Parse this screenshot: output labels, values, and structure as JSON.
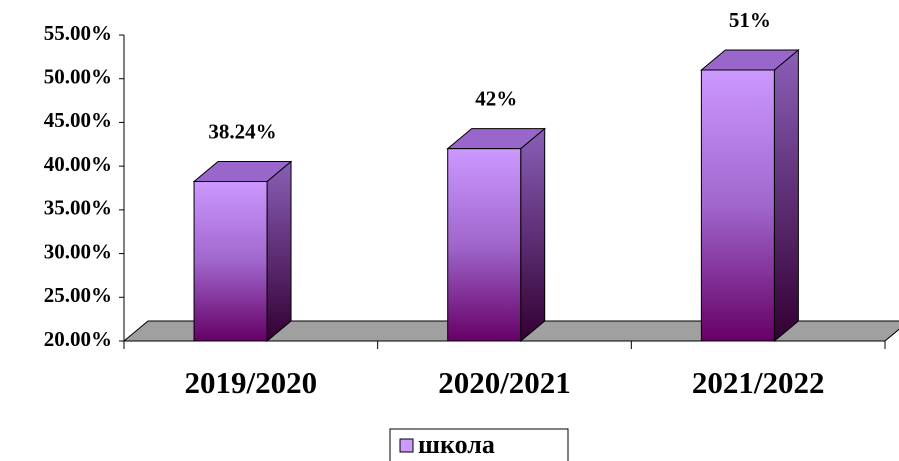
{
  "chart_data": {
    "type": "bar3d",
    "categories": [
      "2019/2020",
      "2020/2021",
      "2021/2022"
    ],
    "series": [
      {
        "name": "школа",
        "color": "#cc99ff",
        "values": [
          38.24,
          42,
          51
        ],
        "value_labels": [
          "38.24%",
          "42%",
          "51%"
        ]
      }
    ],
    "ylim": [
      20,
      55
    ],
    "yticks": [
      {
        "value": 20,
        "label": "20.00%"
      },
      {
        "value": 25,
        "label": "25.00%"
      },
      {
        "value": 30,
        "label": "30.00%"
      },
      {
        "value": 35,
        "label": "35.00%"
      },
      {
        "value": 40,
        "label": "40.00%"
      },
      {
        "value": 45,
        "label": "45.00%"
      },
      {
        "value": 50,
        "label": "50.00%"
      },
      {
        "value": 55,
        "label": "55.00%"
      }
    ],
    "legend": "bottom"
  }
}
